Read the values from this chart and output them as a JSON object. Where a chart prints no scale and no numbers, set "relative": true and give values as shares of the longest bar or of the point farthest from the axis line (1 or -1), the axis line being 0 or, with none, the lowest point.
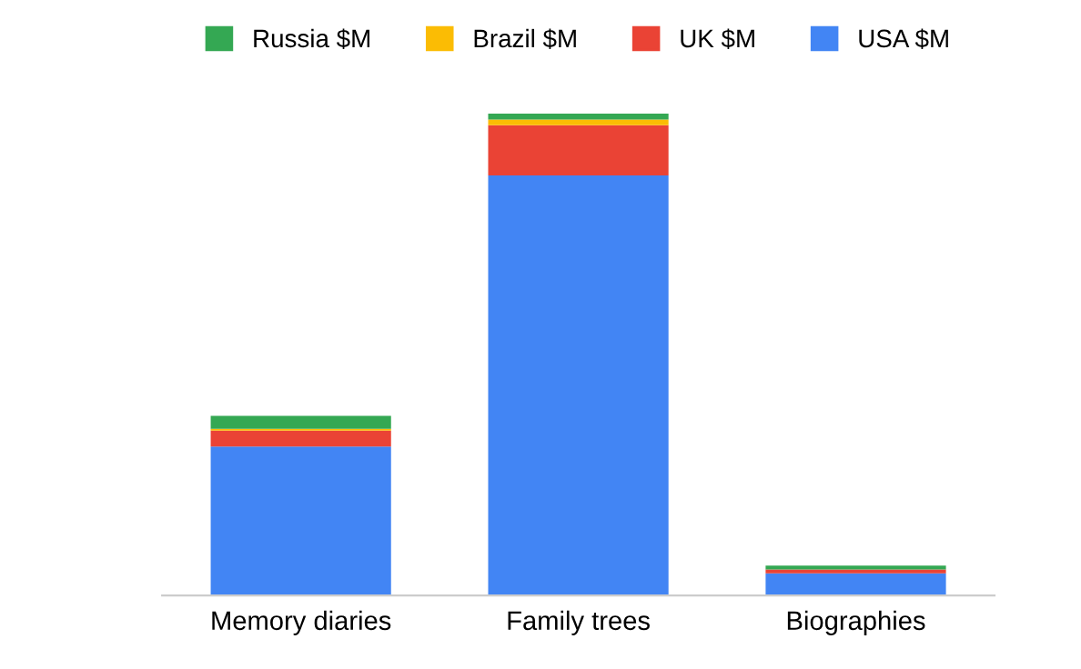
{
  "chart_data": {
    "type": "bar",
    "stacked": true,
    "relative": true,
    "legend": "top",
    "categories": [
      "Memory diaries",
      "Family trees",
      "Biographies"
    ],
    "series": [
      {
        "name": "USA $M",
        "color": "#4285f4",
        "values": [
          0.309,
          0.872,
          0.046
        ]
      },
      {
        "name": "UK $M",
        "color": "#ea4335",
        "values": [
          0.033,
          0.104,
          0.008
        ]
      },
      {
        "name": "Brazil $M",
        "color": "#fbbc04",
        "values": [
          0.004,
          0.012,
          0
        ]
      },
      {
        "name": "Russia $M",
        "color": "#34a853",
        "values": [
          0.027,
          0.012,
          0.008
        ]
      }
    ]
  }
}
